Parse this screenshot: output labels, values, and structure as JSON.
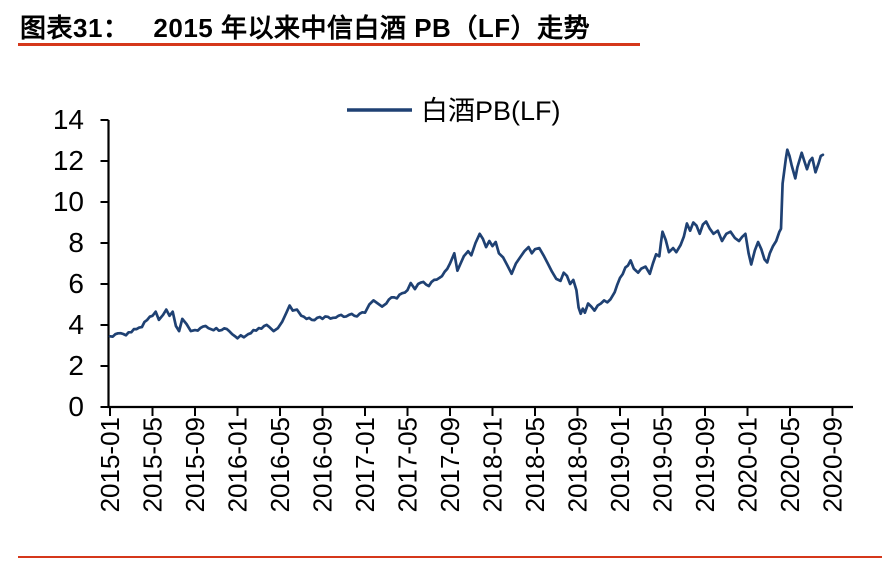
{
  "header": {
    "figure_label": "图表31：",
    "figure_title": "2015 年以来中信白酒 PB（LF）走势"
  },
  "colors": {
    "accent_red": "#d5381b",
    "line_navy": "#1f4173",
    "axis_black": "#000000"
  },
  "chart_data": {
    "type": "line",
    "title": "",
    "xlabel": "",
    "ylabel": "",
    "grid": false,
    "legend": {
      "position": "top",
      "entries": [
        "白酒PB(LF)"
      ]
    },
    "ylim": [
      0,
      14
    ],
    "y_ticks": [
      0,
      2,
      4,
      6,
      8,
      10,
      12,
      14
    ],
    "x_unit": "months-since-2015-01",
    "x_tick_positions": [
      0,
      4,
      8,
      12,
      16,
      20,
      24,
      28,
      32,
      36,
      40,
      44,
      48,
      52,
      56,
      60,
      64,
      68
    ],
    "x_tick_labels": [
      "2015-01",
      "2015-05",
      "2015-09",
      "2016-01",
      "2016-05",
      "2016-09",
      "2017-01",
      "2017-05",
      "2017-09",
      "2018-01",
      "2018-05",
      "2018-09",
      "2019-01",
      "2019-05",
      "2019-09",
      "2020-01",
      "2020-05",
      "2020-09"
    ],
    "series": [
      {
        "name": "白酒PB(LF)",
        "color": "#1f4173",
        "points": [
          [
            0,
            3.45
          ],
          [
            0.5,
            3.55
          ],
          [
            1,
            3.6
          ],
          [
            1.5,
            3.5
          ],
          [
            2,
            3.65
          ],
          [
            2.5,
            3.8
          ],
          [
            3,
            3.9
          ],
          [
            3.5,
            4.25
          ],
          [
            4,
            4.45
          ],
          [
            4.3,
            4.65
          ],
          [
            4.6,
            4.25
          ],
          [
            5,
            4.5
          ],
          [
            5.3,
            4.75
          ],
          [
            5.6,
            4.45
          ],
          [
            5.9,
            4.65
          ],
          [
            6.2,
            3.95
          ],
          [
            6.5,
            3.7
          ],
          [
            6.8,
            4.3
          ],
          [
            7.2,
            4.05
          ],
          [
            7.6,
            3.7
          ],
          [
            8,
            3.75
          ],
          [
            8.5,
            3.85
          ],
          [
            9,
            3.95
          ],
          [
            9.5,
            3.8
          ],
          [
            10,
            3.85
          ],
          [
            10.5,
            3.75
          ],
          [
            11,
            3.8
          ],
          [
            11.5,
            3.55
          ],
          [
            12,
            3.35
          ],
          [
            12.3,
            3.5
          ],
          [
            12.6,
            3.4
          ],
          [
            13,
            3.55
          ],
          [
            13.5,
            3.75
          ],
          [
            14,
            3.85
          ],
          [
            14.5,
            3.95
          ],
          [
            15,
            3.9
          ],
          [
            15.4,
            3.7
          ],
          [
            15.8,
            3.85
          ],
          [
            16.2,
            4.15
          ],
          [
            16.6,
            4.6
          ],
          [
            16.9,
            4.95
          ],
          [
            17.2,
            4.7
          ],
          [
            17.6,
            4.75
          ],
          [
            18,
            4.45
          ],
          [
            18.5,
            4.3
          ],
          [
            19,
            4.25
          ],
          [
            19.5,
            4.35
          ],
          [
            20,
            4.3
          ],
          [
            20.5,
            4.4
          ],
          [
            21,
            4.35
          ],
          [
            21.5,
            4.45
          ],
          [
            22,
            4.4
          ],
          [
            22.5,
            4.5
          ],
          [
            23,
            4.45
          ],
          [
            23.5,
            4.55
          ],
          [
            24,
            4.6
          ],
          [
            24.4,
            5.0
          ],
          [
            24.8,
            5.2
          ],
          [
            25.2,
            5.05
          ],
          [
            25.6,
            4.9
          ],
          [
            26,
            5.05
          ],
          [
            26.5,
            5.35
          ],
          [
            27,
            5.3
          ],
          [
            27.5,
            5.55
          ],
          [
            28,
            5.7
          ],
          [
            28.3,
            6.05
          ],
          [
            28.7,
            5.75
          ],
          [
            29,
            6.0
          ],
          [
            29.5,
            6.1
          ],
          [
            30,
            5.9
          ],
          [
            30.5,
            6.2
          ],
          [
            31,
            6.3
          ],
          [
            31.5,
            6.6
          ],
          [
            32,
            7.0
          ],
          [
            32.4,
            7.5
          ],
          [
            32.7,
            6.65
          ],
          [
            33,
            7.0
          ],
          [
            33.3,
            7.35
          ],
          [
            33.7,
            7.6
          ],
          [
            34,
            7.4
          ],
          [
            34.4,
            8.0
          ],
          [
            34.8,
            8.45
          ],
          [
            35.1,
            8.2
          ],
          [
            35.4,
            7.8
          ],
          [
            35.7,
            8.1
          ],
          [
            36,
            7.85
          ],
          [
            36.3,
            8.05
          ],
          [
            36.6,
            7.5
          ],
          [
            37,
            7.3
          ],
          [
            37.4,
            6.9
          ],
          [
            37.8,
            6.5
          ],
          [
            38.2,
            7.0
          ],
          [
            38.6,
            7.3
          ],
          [
            39,
            7.6
          ],
          [
            39.4,
            7.8
          ],
          [
            39.7,
            7.5
          ],
          [
            40,
            7.7
          ],
          [
            40.4,
            7.75
          ],
          [
            40.8,
            7.4
          ],
          [
            41.2,
            7.0
          ],
          [
            41.6,
            6.6
          ],
          [
            42,
            6.25
          ],
          [
            42.4,
            6.15
          ],
          [
            42.7,
            6.55
          ],
          [
            43,
            6.4
          ],
          [
            43.3,
            6.0
          ],
          [
            43.6,
            6.2
          ],
          [
            43.9,
            5.7
          ],
          [
            44.1,
            4.85
          ],
          [
            44.3,
            4.55
          ],
          [
            44.5,
            4.8
          ],
          [
            44.7,
            4.6
          ],
          [
            45,
            5.05
          ],
          [
            45.3,
            4.9
          ],
          [
            45.6,
            4.7
          ],
          [
            45.9,
            4.95
          ],
          [
            46.2,
            5.05
          ],
          [
            46.5,
            5.2
          ],
          [
            46.8,
            5.1
          ],
          [
            47.1,
            5.25
          ],
          [
            47.5,
            5.6
          ],
          [
            48,
            6.3
          ],
          [
            48.5,
            6.8
          ],
          [
            49,
            7.15
          ],
          [
            49.3,
            6.75
          ],
          [
            49.7,
            6.55
          ],
          [
            50,
            6.75
          ],
          [
            50.4,
            6.85
          ],
          [
            50.8,
            6.5
          ],
          [
            51.1,
            7.0
          ],
          [
            51.4,
            7.45
          ],
          [
            51.7,
            7.35
          ],
          [
            51.85,
            8.0
          ],
          [
            52,
            8.55
          ],
          [
            52.3,
            8.15
          ],
          [
            52.6,
            7.55
          ],
          [
            53,
            7.75
          ],
          [
            53.3,
            7.55
          ],
          [
            53.7,
            7.9
          ],
          [
            54,
            8.3
          ],
          [
            54.3,
            8.95
          ],
          [
            54.6,
            8.6
          ],
          [
            54.9,
            9.0
          ],
          [
            55.2,
            8.85
          ],
          [
            55.5,
            8.45
          ],
          [
            55.8,
            8.9
          ],
          [
            56.1,
            9.05
          ],
          [
            56.45,
            8.7
          ],
          [
            56.8,
            8.45
          ],
          [
            57.2,
            8.6
          ],
          [
            57.6,
            8.1
          ],
          [
            58,
            8.45
          ],
          [
            58.4,
            8.55
          ],
          [
            58.8,
            8.25
          ],
          [
            59.2,
            8.1
          ],
          [
            59.5,
            8.3
          ],
          [
            59.8,
            8.45
          ],
          [
            60.1,
            7.5
          ],
          [
            60.35,
            6.95
          ],
          [
            60.7,
            7.65
          ],
          [
            61,
            8.05
          ],
          [
            61.3,
            7.7
          ],
          [
            61.6,
            7.2
          ],
          [
            61.85,
            7.05
          ],
          [
            62.1,
            7.5
          ],
          [
            62.4,
            7.85
          ],
          [
            62.7,
            8.1
          ],
          [
            63,
            8.55
          ],
          [
            63.15,
            8.7
          ],
          [
            63.3,
            10.9
          ],
          [
            63.45,
            11.5
          ],
          [
            63.6,
            12.1
          ],
          [
            63.75,
            12.55
          ],
          [
            63.95,
            12.25
          ],
          [
            64.15,
            11.8
          ],
          [
            64.5,
            11.15
          ],
          [
            64.7,
            11.7
          ],
          [
            65.1,
            12.4
          ],
          [
            65.35,
            12.0
          ],
          [
            65.6,
            11.6
          ],
          [
            65.85,
            12.0
          ],
          [
            66.1,
            12.15
          ],
          [
            66.4,
            11.45
          ],
          [
            66.7,
            11.9
          ],
          [
            66.9,
            12.25
          ],
          [
            67.1,
            12.3
          ]
        ]
      }
    ]
  }
}
